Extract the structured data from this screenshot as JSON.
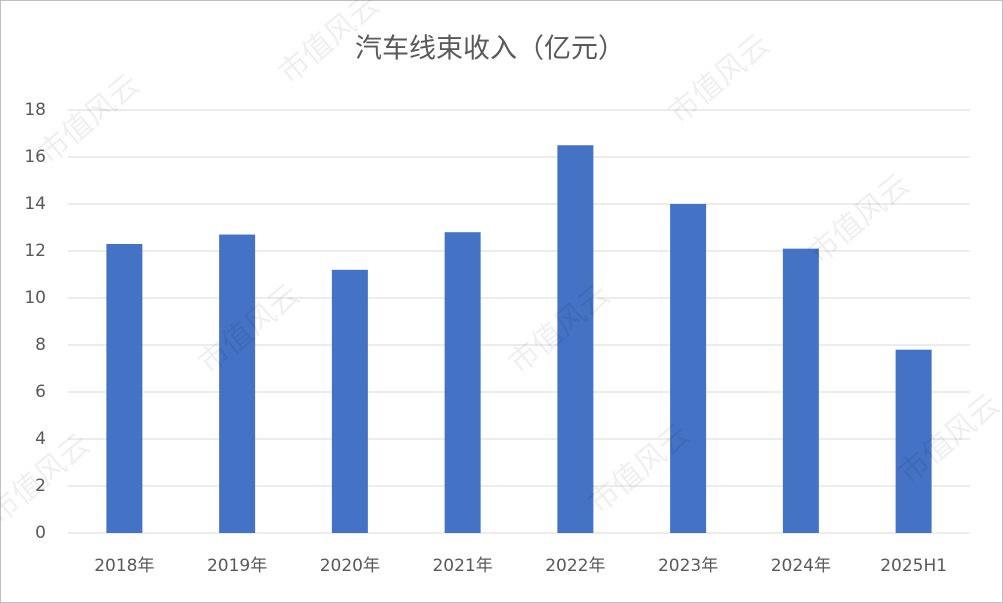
{
  "chart_data": {
    "type": "bar",
    "title": "汽车线束收入（亿元）",
    "categories": [
      "2018年",
      "2019年",
      "2020年",
      "2021年",
      "2022年",
      "2023年",
      "2024年",
      "2025H1"
    ],
    "values": [
      12.3,
      12.7,
      11.2,
      12.8,
      16.5,
      14.0,
      12.1,
      7.8
    ],
    "color": "#4472c4",
    "ylim": [
      0,
      18
    ],
    "yticks": [
      0,
      2,
      4,
      6,
      8,
      10,
      12,
      14,
      16,
      18
    ],
    "grid": true,
    "watermark": "市值风云"
  }
}
